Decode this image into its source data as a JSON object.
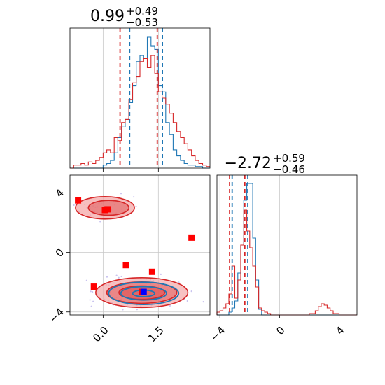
{
  "colors": {
    "blue": "#1f77b4",
    "red": "#d62728",
    "red_fill": "#f4a8a8",
    "red_fill_dark": "#e05858",
    "blue_fill": "#aac8e6",
    "grid": "#c8c8c8",
    "scatter_dots": "#c9c3ef",
    "marker_red": "#ff0000",
    "marker_blue": "#0000ff"
  },
  "chart_data": {
    "type": "corner",
    "parameters": [
      {
        "range": [
          -0.9,
          2.9
        ],
        "ticks": [
          0.0,
          1.5
        ],
        "tick_labels": [
          "0.0",
          "1.5"
        ],
        "title": {
          "value": "0.99",
          "plus": "+0.49",
          "minus": "−0.53"
        },
        "quantile_lines": {
          "blue": [
            0.72,
            1.61
          ],
          "red": [
            0.46,
            1.47
          ]
        },
        "hist_blue": {
          "edges_start": -0.9,
          "bin_width": 0.1,
          "values": [
            0,
            0,
            0,
            0,
            0,
            0,
            0,
            0,
            0,
            0.02,
            0.03,
            0.05,
            0.1,
            0.2,
            0.27,
            0.32,
            0.43,
            0.54,
            0.7,
            0.74,
            0.72,
            0.86,
            0.8,
            0.78,
            0.54,
            0.5,
            0.3,
            0.22,
            0.12,
            0.08,
            0.05,
            0.03,
            0.02,
            0.02,
            0.01,
            0.01,
            0,
            0
          ]
        },
        "hist_red": {
          "edges_start": -0.9,
          "bin_width": 0.1,
          "values": [
            0,
            0.02,
            0.02,
            0.03,
            0.02,
            0.04,
            0.03,
            0.05,
            0.07,
            0.1,
            0.12,
            0.1,
            0.2,
            0.18,
            0.3,
            0.32,
            0.45,
            0.56,
            0.6,
            0.7,
            0.72,
            0.66,
            0.74,
            0.62,
            0.5,
            0.46,
            0.42,
            0.36,
            0.3,
            0.24,
            0.2,
            0.16,
            0.12,
            0.08,
            0.05,
            0.03,
            0.02,
            0.01
          ]
        }
      },
      {
        "range": [
          -4.2,
          5.2
        ],
        "ticks": [
          -4,
          0,
          4
        ],
        "tick_labels": [
          "−4",
          "0",
          "4"
        ],
        "title": {
          "value": "−2.72",
          "plus": "+0.59",
          "minus": "−0.46"
        },
        "quantile_lines": {
          "blue": [
            -3.18,
            -2.13
          ],
          "red": [
            -3.35,
            -2.33
          ]
        },
        "hist_blue": {
          "edges_start": -4.2,
          "bin_width": 0.2,
          "values": [
            0,
            0,
            0,
            0,
            0.02,
            0.05,
            0.1,
            0.3,
            0.5,
            0.82,
            0.94,
            0.94,
            0.55,
            0.25,
            0.04,
            0,
            0,
            0,
            0,
            0,
            0,
            0,
            0,
            0,
            0,
            0,
            0,
            0,
            0,
            0,
            0,
            0,
            0,
            0,
            0,
            0,
            0,
            0,
            0,
            0,
            0,
            0,
            0,
            0,
            0,
            0,
            0
          ]
        },
        "hist_red": {
          "edges_start": -4.2,
          "bin_width": 0.2,
          "values": [
            0.02,
            0.03,
            0.05,
            0.08,
            0.15,
            0.35,
            0.12,
            0.25,
            0.5,
            0.75,
            0.6,
            0.48,
            0.35,
            0.2,
            0.05,
            0.03,
            0.02,
            0.01,
            0,
            0,
            0,
            0,
            0,
            0,
            0,
            0,
            0,
            0,
            0,
            0,
            0,
            0.01,
            0.01,
            0.03,
            0.06,
            0.08,
            0.07,
            0.05,
            0.03,
            0.01,
            0.01,
            0,
            0,
            0,
            0,
            0,
            0
          ]
        }
      }
    ],
    "scatter_markers": {
      "red": [
        {
          "x": -0.68,
          "y": 3.5
        },
        {
          "x": 0.12,
          "y": 2.9
        },
        {
          "x": 0.05,
          "y": 2.85
        },
        {
          "x": 2.4,
          "y": 1.0
        },
        {
          "x": 0.62,
          "y": -0.85
        },
        {
          "x": 1.33,
          "y": -1.3
        },
        {
          "x": -0.25,
          "y": -2.3
        },
        {
          "x": 1.05,
          "y": -2.65
        }
      ],
      "blue": [
        {
          "x": 1.1,
          "y": -2.65
        }
      ]
    },
    "contours_red": [
      {
        "cx": 0.05,
        "cy": 3.0,
        "rx": 0.8,
        "ry": 0.75
      },
      {
        "cx": 0.15,
        "cy": 3.0,
        "rx": 0.55,
        "ry": 0.5
      },
      {
        "cx": 1.05,
        "cy": -2.7,
        "rx": 1.25,
        "ry": 1.0
      },
      {
        "cx": 1.05,
        "cy": -2.7,
        "rx": 0.95,
        "ry": 0.72
      },
      {
        "cx": 1.05,
        "cy": -2.7,
        "rx": 0.62,
        "ry": 0.45
      }
    ],
    "contours_blue": [
      {
        "cx": 1.1,
        "cy": -2.75,
        "rx": 0.95,
        "ry": 0.75
      },
      {
        "cx": 1.1,
        "cy": -2.75,
        "rx": 0.62,
        "ry": 0.45
      },
      {
        "cx": 1.1,
        "cy": -2.75,
        "rx": 0.3,
        "ry": 0.22
      }
    ]
  }
}
